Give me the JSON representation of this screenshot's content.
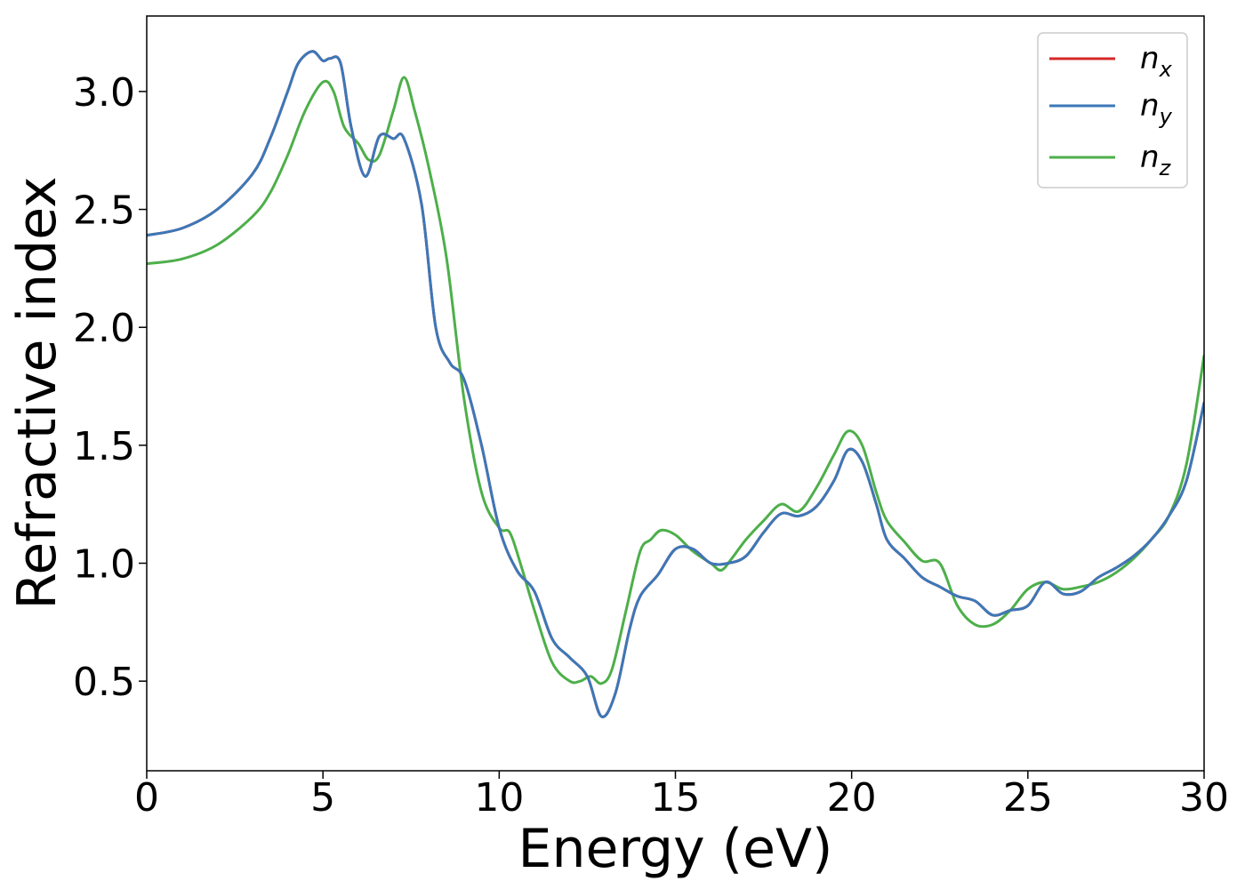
{
  "chart_data": {
    "type": "line",
    "xlabel": "Energy (eV)",
    "ylabel": "Refractive index",
    "xlim": [
      0,
      30
    ],
    "ylim": [
      0.12,
      3.32
    ],
    "xticks": [
      0,
      5,
      10,
      15,
      20,
      25,
      30
    ],
    "xtick_labels": [
      "0",
      "5",
      "10",
      "15",
      "20",
      "25",
      "30"
    ],
    "yticks": [
      0.5,
      1.0,
      1.5,
      2.0,
      2.5,
      3.0
    ],
    "ytick_labels": [
      "0.5",
      "1.0",
      "1.5",
      "2.0",
      "2.5",
      "3.0"
    ],
    "grid": false,
    "legend_position": "top-right",
    "series": [
      {
        "name": "n",
        "subscript": "x",
        "color": "#d62728",
        "x": [
          0,
          1,
          2,
          3,
          3.5,
          4,
          4.3,
          4.7,
          5.0,
          5.2,
          5.5,
          5.8,
          6.2,
          6.6,
          7.0,
          7.3,
          7.8,
          8.2,
          8.6,
          9.0,
          9.5,
          10.0,
          10.5,
          11.0,
          11.5,
          12.0,
          12.5,
          12.9,
          13.3,
          13.7,
          14.0,
          14.5,
          15.0,
          15.5,
          16.0,
          16.5,
          17.0,
          17.5,
          18.0,
          18.5,
          19.0,
          19.5,
          19.9,
          20.3,
          20.7,
          21.0,
          21.5,
          22.0,
          22.5,
          23.0,
          23.5,
          24.0,
          24.5,
          25.0,
          25.5,
          26.0,
          26.5,
          27.0,
          27.5,
          28.0,
          28.5,
          29.0,
          29.5,
          30.0
        ],
        "values": [
          2.39,
          2.42,
          2.5,
          2.65,
          2.8,
          3.0,
          3.12,
          3.17,
          3.13,
          3.14,
          3.12,
          2.85,
          2.64,
          2.81,
          2.8,
          2.8,
          2.52,
          2.0,
          1.85,
          1.78,
          1.5,
          1.15,
          0.97,
          0.88,
          0.68,
          0.6,
          0.52,
          0.35,
          0.45,
          0.72,
          0.86,
          0.95,
          1.06,
          1.06,
          1.0,
          1.0,
          1.03,
          1.13,
          1.21,
          1.2,
          1.24,
          1.35,
          1.48,
          1.43,
          1.25,
          1.1,
          1.02,
          0.94,
          0.9,
          0.86,
          0.84,
          0.78,
          0.8,
          0.82,
          0.92,
          0.87,
          0.88,
          0.94,
          0.98,
          1.03,
          1.1,
          1.2,
          1.35,
          1.68
        ]
      },
      {
        "name": "n",
        "subscript": "y",
        "color": "#3b78b8",
        "x": [
          0,
          1,
          2,
          3,
          3.5,
          4,
          4.3,
          4.7,
          5.0,
          5.2,
          5.5,
          5.8,
          6.2,
          6.6,
          7.0,
          7.3,
          7.8,
          8.2,
          8.6,
          9.0,
          9.5,
          10.0,
          10.5,
          11.0,
          11.5,
          12.0,
          12.5,
          12.9,
          13.3,
          13.7,
          14.0,
          14.5,
          15.0,
          15.5,
          16.0,
          16.5,
          17.0,
          17.5,
          18.0,
          18.5,
          19.0,
          19.5,
          19.9,
          20.3,
          20.7,
          21.0,
          21.5,
          22.0,
          22.5,
          23.0,
          23.5,
          24.0,
          24.5,
          25.0,
          25.5,
          26.0,
          26.5,
          27.0,
          27.5,
          28.0,
          28.5,
          29.0,
          29.5,
          30.0
        ],
        "values": [
          2.39,
          2.42,
          2.5,
          2.65,
          2.8,
          3.0,
          3.12,
          3.17,
          3.13,
          3.14,
          3.12,
          2.85,
          2.64,
          2.81,
          2.8,
          2.8,
          2.52,
          2.0,
          1.85,
          1.78,
          1.5,
          1.15,
          0.97,
          0.88,
          0.68,
          0.6,
          0.52,
          0.35,
          0.45,
          0.72,
          0.86,
          0.95,
          1.06,
          1.06,
          1.0,
          1.0,
          1.03,
          1.13,
          1.21,
          1.2,
          1.24,
          1.35,
          1.48,
          1.43,
          1.25,
          1.1,
          1.02,
          0.94,
          0.9,
          0.86,
          0.84,
          0.78,
          0.8,
          0.82,
          0.92,
          0.87,
          0.88,
          0.94,
          0.98,
          1.03,
          1.1,
          1.2,
          1.35,
          1.68
        ]
      },
      {
        "name": "n",
        "subscript": "z",
        "color": "#4daf4a",
        "x": [
          0,
          1,
          2,
          3,
          3.5,
          4,
          4.5,
          5.0,
          5.3,
          5.6,
          6.0,
          6.3,
          6.6,
          7.0,
          7.3,
          7.6,
          8.0,
          8.5,
          9.0,
          9.5,
          10.0,
          10.3,
          10.6,
          11.0,
          11.5,
          12.0,
          12.3,
          12.6,
          12.9,
          13.2,
          13.6,
          14.0,
          14.3,
          14.6,
          15.0,
          15.5,
          16.0,
          16.3,
          16.6,
          17.0,
          17.5,
          18.0,
          18.5,
          19.0,
          19.5,
          19.9,
          20.3,
          20.7,
          21.0,
          21.5,
          22.0,
          22.5,
          23.0,
          23.5,
          24.0,
          24.5,
          25.0,
          25.5,
          26.0,
          26.5,
          27.0,
          27.5,
          28.0,
          28.5,
          29.0,
          29.5,
          30.0
        ],
        "values": [
          2.27,
          2.29,
          2.35,
          2.47,
          2.57,
          2.73,
          2.92,
          3.04,
          3.0,
          2.85,
          2.78,
          2.71,
          2.73,
          2.92,
          3.06,
          2.92,
          2.68,
          2.3,
          1.7,
          1.3,
          1.15,
          1.13,
          1.0,
          0.8,
          0.58,
          0.5,
          0.5,
          0.52,
          0.49,
          0.55,
          0.8,
          1.05,
          1.1,
          1.14,
          1.12,
          1.05,
          1.0,
          0.97,
          1.02,
          1.1,
          1.18,
          1.25,
          1.22,
          1.32,
          1.46,
          1.56,
          1.5,
          1.3,
          1.18,
          1.09,
          1.01,
          1.0,
          0.82,
          0.74,
          0.74,
          0.8,
          0.89,
          0.92,
          0.89,
          0.9,
          0.92,
          0.96,
          1.02,
          1.1,
          1.2,
          1.42,
          1.88
        ]
      }
    ]
  }
}
